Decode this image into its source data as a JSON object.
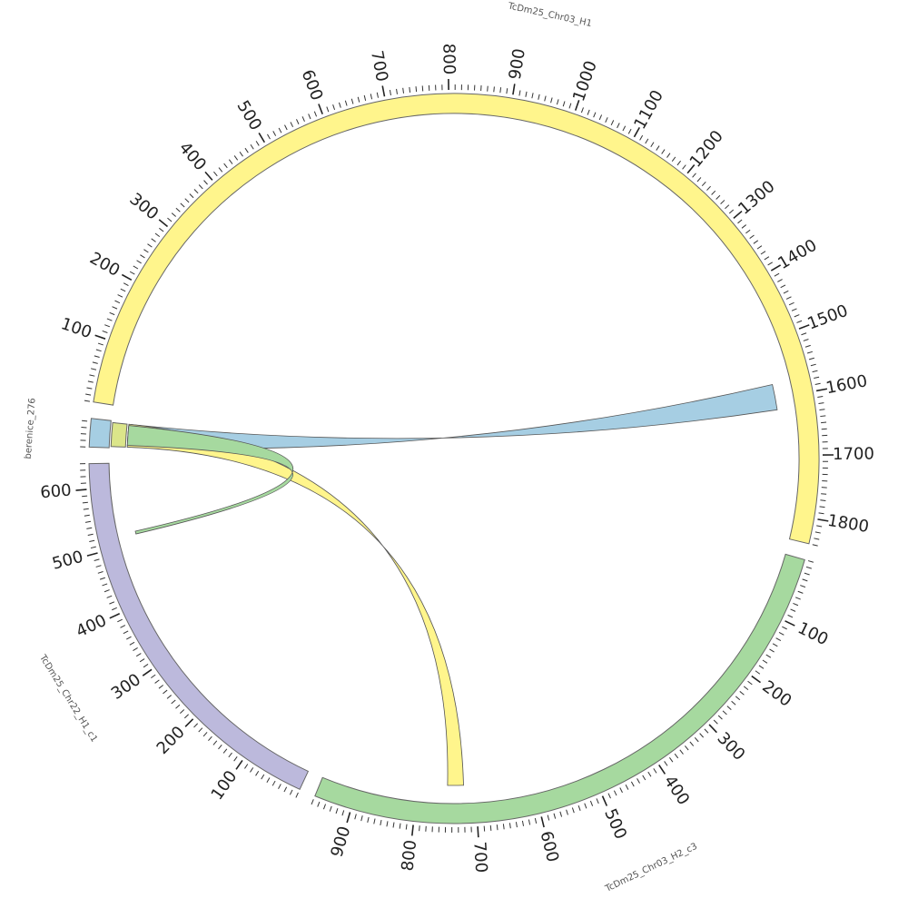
{
  "chart_data": {
    "type": "chord",
    "title": "",
    "segments": [
      {
        "id": "berenice_276",
        "label": "berenice_276",
        "length": 45,
        "color": "#a6cee3",
        "tick_labels": []
      },
      {
        "id": "TcDm25_Chr03_H1",
        "label": "TcDm25_Chr03_H1",
        "length": 1840,
        "color": "#fff58c",
        "tick_labels": [
          "100",
          "200",
          "300",
          "400",
          "500",
          "600",
          "700",
          "800",
          "900",
          "1000",
          "1100",
          "1200",
          "1300",
          "1400",
          "1500",
          "1600",
          "1700",
          "1800"
        ]
      },
      {
        "id": "TcDm25_Chr03_H2_c3",
        "label": "TcDm25_Chr03_H2_c3",
        "length": 960,
        "color": "#a6d99f",
        "tick_labels": [
          "100",
          "200",
          "300",
          "400",
          "500",
          "600",
          "700",
          "800",
          "900"
        ]
      },
      {
        "id": "TcDm25_Chr22_H1_c1",
        "label": "TcDm25_Chr22_H1_c1",
        "length": 640,
        "color": "#bcb9dc",
        "tick_labels": [
          "100",
          "200",
          "300",
          "400",
          "500",
          "600"
        ]
      }
    ],
    "links": [
      {
        "source": "berenice_276",
        "source_range": [
          2,
          42
        ],
        "target": "TcDm25_Chr03_H1",
        "target_range": [
          1575,
          1620
        ],
        "color": "#a6cee3"
      },
      {
        "source": "berenice_276",
        "source_range": [
          2,
          42
        ],
        "target": "TcDm25_Chr03_H2_c3",
        "target_range": [
          720,
          748
        ],
        "color": "#fff58c"
      },
      {
        "source": "berenice_276",
        "source_range": [
          5,
          40
        ],
        "target": "TcDm25_Chr22_H1_c1",
        "target_range": [
          515,
          520
        ],
        "color": "#a6d99f"
      }
    ],
    "decorations": [
      {
        "segment": "berenice_276",
        "range": [
          2,
          42
        ],
        "color": "#dbe58a"
      }
    ]
  }
}
